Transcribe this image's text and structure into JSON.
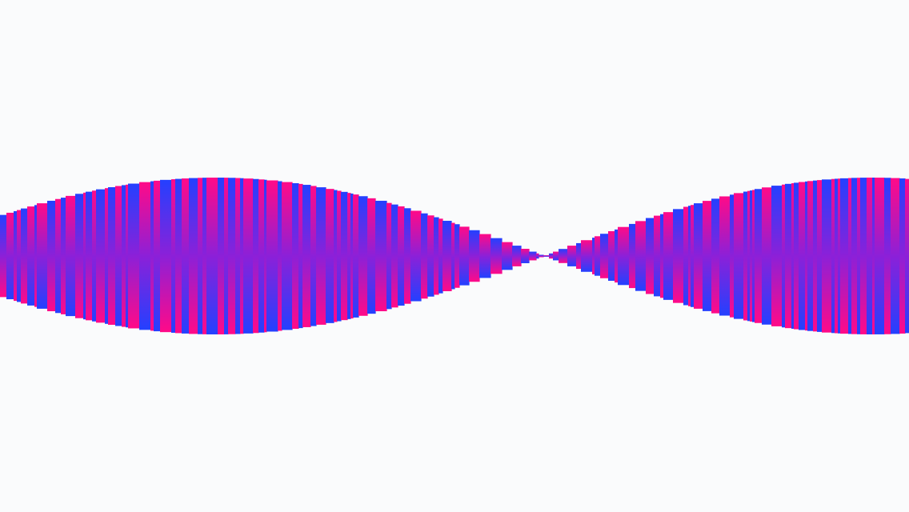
{
  "scene": {
    "background": "#fafbfc",
    "colors": {
      "pink": "#ff0a88",
      "blue": "#2440ff",
      "center": "#8c20d8"
    },
    "ribbon": {
      "lobes": 2,
      "lobe_1": "left",
      "lobe_2": "right",
      "pinch": "center"
    }
  }
}
